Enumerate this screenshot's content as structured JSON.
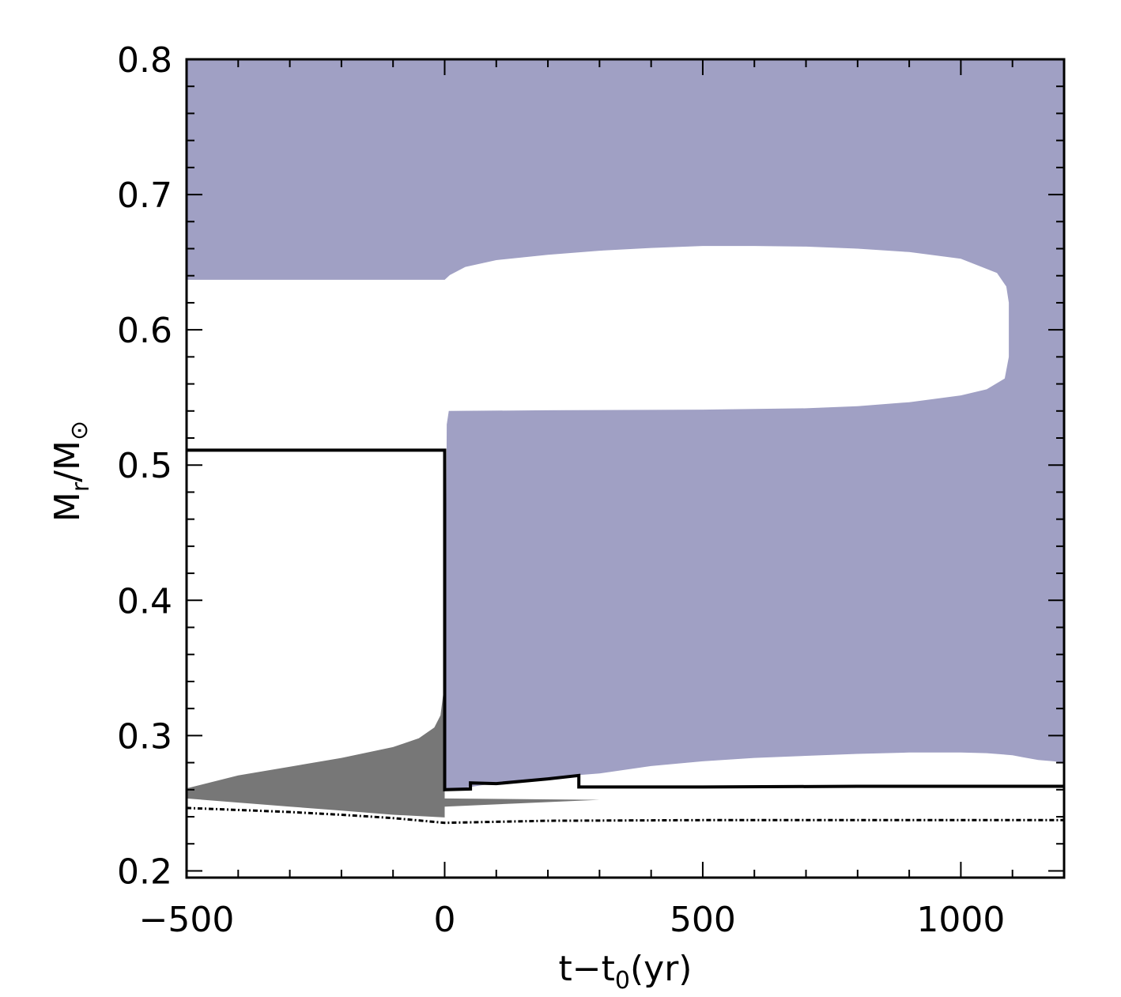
{
  "chart_data": {
    "type": "area",
    "title": "",
    "xlabel": {
      "parts": [
        "t",
        "−",
        "t",
        "0",
        "(yr)"
      ]
    },
    "ylabel": {
      "parts": [
        "M",
        "r",
        "/M",
        "⊙"
      ]
    },
    "xlim": [
      -500,
      1200
    ],
    "ylim": [
      0.195,
      0.8
    ],
    "x_ticks": [
      -500,
      0,
      500,
      1000
    ],
    "x_tick_labels": [
      "−500",
      "0",
      "500",
      "1000"
    ],
    "y_ticks": [
      0.2,
      0.3,
      0.4,
      0.5,
      0.6,
      0.7,
      0.8
    ],
    "y_tick_labels": [
      "0.2",
      "0.3",
      "0.4",
      "0.5",
      "0.6",
      "0.7",
      "0.8"
    ],
    "x_minor_step": 100,
    "y_minor_step": 0.02,
    "grid": false,
    "colors": {
      "convective_zone": "#a0a0c4",
      "burning_zone": "#777777",
      "lines": "#000000"
    },
    "regions": [
      {
        "kind": "convective",
        "boundary": [
          [
            -500,
            0.8
          ],
          [
            1200,
            0.8
          ],
          [
            1200,
            0.28
          ],
          [
            1180,
            0.281
          ],
          [
            1150,
            0.282
          ],
          [
            1120,
            0.284
          ],
          [
            1100,
            0.2855
          ],
          [
            1050,
            0.287
          ],
          [
            1000,
            0.2875
          ],
          [
            900,
            0.2875
          ],
          [
            800,
            0.2865
          ],
          [
            700,
            0.285
          ],
          [
            600,
            0.2835
          ],
          [
            500,
            0.281
          ],
          [
            400,
            0.2775
          ],
          [
            300,
            0.272
          ],
          [
            200,
            0.269
          ],
          [
            100,
            0.265
          ],
          [
            50,
            0.262
          ],
          [
            10,
            0.26
          ],
          [
            0,
            0.259
          ],
          [
            0,
            0.3
          ],
          [
            2,
            0.4
          ],
          [
            4,
            0.53
          ],
          [
            8,
            0.54
          ],
          [
            200,
            0.5405
          ],
          [
            500,
            0.541
          ],
          [
            700,
            0.542
          ],
          [
            800,
            0.5435
          ],
          [
            900,
            0.5465
          ],
          [
            1000,
            0.5515
          ],
          [
            1050,
            0.556
          ],
          [
            1085,
            0.564
          ],
          [
            1093,
            0.58
          ],
          [
            1093,
            0.62
          ],
          [
            1088,
            0.632
          ],
          [
            1070,
            0.642
          ],
          [
            1000,
            0.6525
          ],
          [
            900,
            0.6575
          ],
          [
            800,
            0.66
          ],
          [
            700,
            0.6615
          ],
          [
            600,
            0.662
          ],
          [
            500,
            0.662
          ],
          [
            400,
            0.6605
          ],
          [
            300,
            0.6585
          ],
          [
            200,
            0.6555
          ],
          [
            100,
            0.6515
          ],
          [
            40,
            0.6465
          ],
          [
            10,
            0.6405
          ],
          [
            0,
            0.637
          ],
          [
            -500,
            0.637
          ]
        ]
      },
      {
        "kind": "burning",
        "boundary": [
          [
            -500,
            0.261
          ],
          [
            -400,
            0.2705
          ],
          [
            -300,
            0.277
          ],
          [
            -200,
            0.2835
          ],
          [
            -100,
            0.2915
          ],
          [
            -50,
            0.298
          ],
          [
            -20,
            0.306
          ],
          [
            -8,
            0.315
          ],
          [
            -3,
            0.33
          ],
          [
            0,
            0.35
          ],
          [
            0,
            0.2395
          ],
          [
            -100,
            0.2415
          ],
          [
            -200,
            0.2445
          ],
          [
            -300,
            0.2475
          ],
          [
            -400,
            0.2505
          ],
          [
            -500,
            0.2535
          ]
        ]
      },
      {
        "kind": "burning",
        "boundary": [
          [
            0,
            0.2535
          ],
          [
            300,
            0.2525
          ],
          [
            0,
            0.2475
          ]
        ]
      }
    ],
    "series": [
      {
        "style": "solid",
        "points": [
          [
            -500,
            0.511
          ],
          [
            0,
            0.511
          ],
          [
            0,
            0.26
          ],
          [
            50,
            0.2605
          ],
          [
            50,
            0.265
          ],
          [
            100,
            0.2645
          ],
          [
            200,
            0.268
          ],
          [
            260,
            0.2705
          ],
          [
            260,
            0.262
          ],
          [
            500,
            0.262
          ],
          [
            800,
            0.2625
          ],
          [
            1200,
            0.2625
          ]
        ]
      },
      {
        "style": "dash-dot",
        "points": [
          [
            -500,
            0.2465
          ],
          [
            -300,
            0.2435
          ],
          [
            -200,
            0.2415
          ],
          [
            -100,
            0.239
          ],
          [
            0,
            0.2355
          ],
          [
            200,
            0.237
          ],
          [
            500,
            0.2375
          ],
          [
            800,
            0.2375
          ],
          [
            1200,
            0.2375
          ]
        ]
      }
    ]
  }
}
